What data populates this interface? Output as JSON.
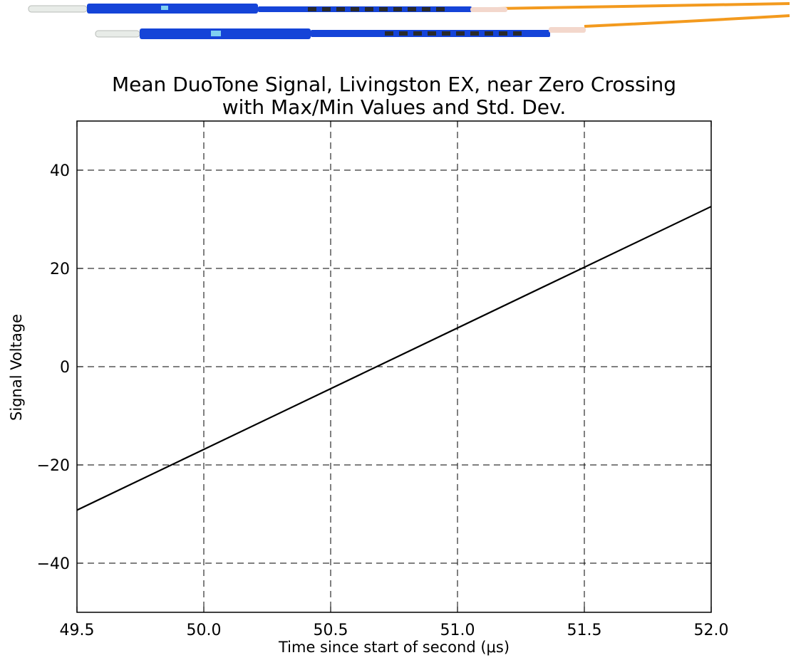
{
  "chart_data": {
    "type": "line",
    "title_lines": [
      "Mean DuoTone Signal, Livingston EX, near Zero Crossing",
      "with Max/Min Values and Std. Dev."
    ],
    "xlabel": "Time since start of second (μs)",
    "ylabel": "Signal Voltage",
    "xlim": [
      49.5,
      52.0
    ],
    "ylim": [
      -50,
      50
    ],
    "xticks": [
      49.5,
      50.0,
      50.5,
      51.0,
      51.5,
      52.0
    ],
    "xtick_labels": [
      "49.5",
      "50.0",
      "50.5",
      "51.0",
      "51.5",
      "52.0"
    ],
    "yticks": [
      40,
      20,
      0,
      -20,
      -40
    ],
    "ytick_labels": [
      "40",
      "20",
      "0",
      "−20",
      "−40"
    ],
    "grid": true,
    "grid_style": "dashed",
    "series": [
      {
        "color": "#000000",
        "x": [
          49.5,
          52.0
        ],
        "y": [
          -29.2,
          32.6
        ]
      }
    ]
  },
  "decoration": {
    "cable_colors": {
      "connector": "#1544d8",
      "fiber": "#f39a1e",
      "boot": "#f3d7cc",
      "ferrule": "#e8ece8"
    }
  }
}
